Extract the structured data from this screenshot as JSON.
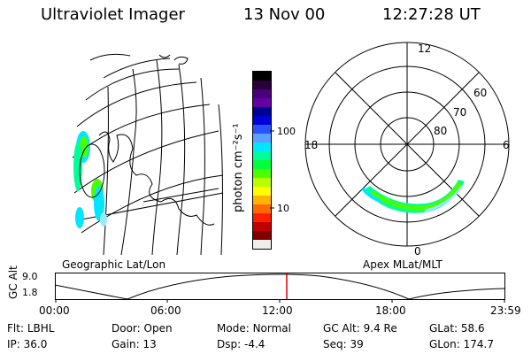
{
  "header": {
    "instrument": "Ultraviolet Imager",
    "date": "13 Nov 00",
    "time": "12:27:28 UT"
  },
  "geo_map": {
    "caption": "Geographic Lat/Lon"
  },
  "colorbar": {
    "unit_label": "photon cm⁻²s⁻¹",
    "ticks": [
      "100",
      "10"
    ],
    "colors": [
      "#000000",
      "#2a0038",
      "#4a0078",
      "#6400a0",
      "#000090",
      "#0000d8",
      "#2a52ff",
      "#5aa0ff",
      "#00e6ff",
      "#00ff9a",
      "#00ff3c",
      "#4cff00",
      "#b8ff00",
      "#ffff00",
      "#ffb400",
      "#ff6a00",
      "#ff1e00",
      "#c00000",
      "#800000",
      "#eeeeee"
    ]
  },
  "polar_map": {
    "caption": "Apex MLat/MLT",
    "mlt_labels": {
      "top": "12",
      "left": "18",
      "right": "6",
      "bottom": "0"
    },
    "mlat_labels": [
      "60",
      "70",
      "80"
    ]
  },
  "altitude_plot": {
    "ylabel": "GC Alt",
    "y_ticks": [
      "9.0",
      "1.8"
    ],
    "x_ticks": [
      "00:00",
      "06:00",
      "12:00",
      "18:00",
      "23:59"
    ],
    "marker_color": "#e00000"
  },
  "status": {
    "row1": [
      {
        "label": "Flt:",
        "value": "LBHL"
      },
      {
        "label": "Door:",
        "value": "Open"
      },
      {
        "label": "Mode:",
        "value": "Normal"
      },
      {
        "label": "GC Alt:",
        "value": "9.4 Re"
      },
      {
        "label": "GLat:",
        "value": "58.6"
      }
    ],
    "row2": [
      {
        "label": "IP:",
        "value": "36.0"
      },
      {
        "label": "Gain:",
        "value": "13"
      },
      {
        "label": "Dsp:",
        "value": "-4.4"
      },
      {
        "label": "Seq:",
        "value": "39"
      },
      {
        "label": "GLon:",
        "value": "174.7"
      }
    ]
  }
}
